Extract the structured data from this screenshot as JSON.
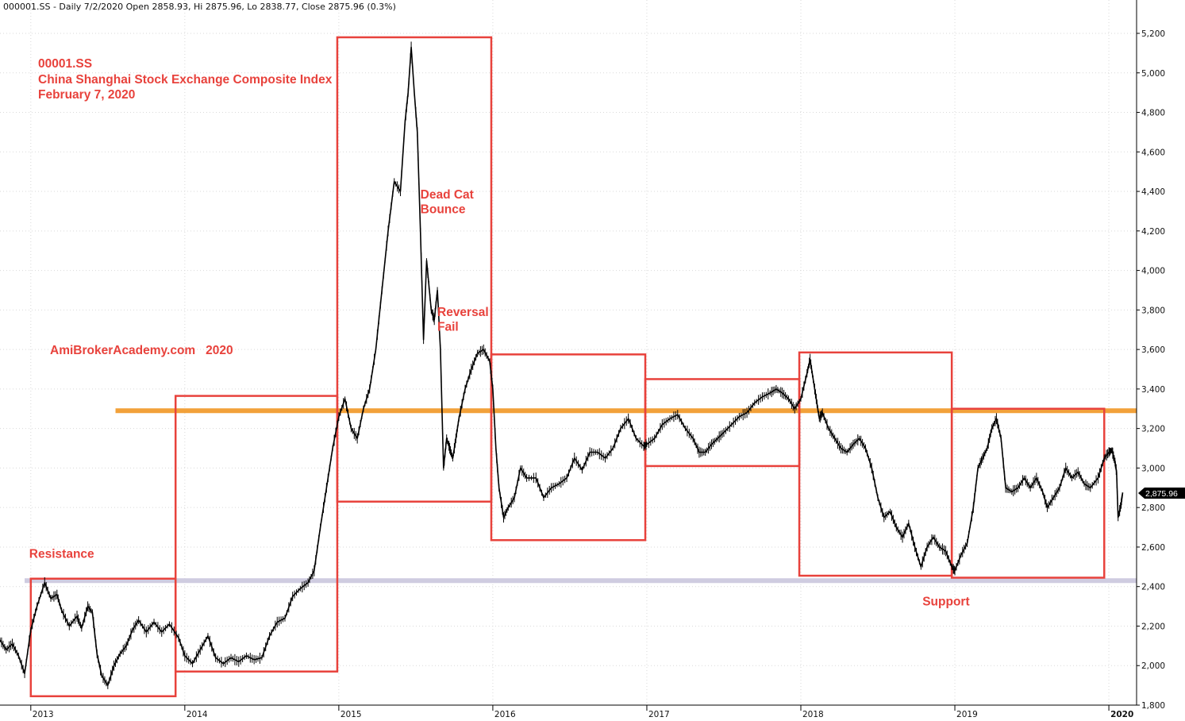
{
  "header": {
    "text": "000001.SS - Daily 7/2/2020 Open 2858.93, Hi 2875.96, Lo 2838.77, Close 2875.96 (0.3%)"
  },
  "chart_data": {
    "type": "line",
    "title": "00001.SS",
    "subtitle": "China Shanghai Stock Exchange Composite Index",
    "date_label": "February 7, 2020",
    "watermark": "AmiBrokerAcademy.com   2020",
    "price_tag": "2,875.96",
    "ylim": [
      1800,
      5300
    ],
    "y_ticks": [
      1800,
      2000,
      2200,
      2400,
      2600,
      2800,
      3000,
      3200,
      3400,
      3600,
      3800,
      4000,
      4200,
      4400,
      4600,
      4800,
      5000,
      5200
    ],
    "y_tick_labels": [
      "1,800",
      "2,000",
      "2,200",
      "2,400",
      "2,600",
      "2,800",
      "3,000",
      "3,200",
      "3,400",
      "3,600",
      "3,800",
      "4,000",
      "4,200",
      "4,400",
      "4,600",
      "4,800",
      "5,000",
      "5,200"
    ],
    "xlim": [
      2012.8,
      2020.18
    ],
    "x_ticks": [
      {
        "value": 2013.0,
        "label": "2013"
      },
      {
        "value": 2014.0,
        "label": "2014"
      },
      {
        "value": 2015.0,
        "label": "2015"
      },
      {
        "value": 2016.0,
        "label": "2016"
      },
      {
        "value": 2017.0,
        "label": "2017"
      },
      {
        "value": 2018.0,
        "label": "2018"
      },
      {
        "value": 2019.0,
        "label": "2019"
      },
      {
        "value": 2020.0,
        "label": "2020"
      }
    ],
    "series": [
      {
        "points": [
          [
            2012.8,
            2130
          ],
          [
            2012.84,
            2080
          ],
          [
            2012.88,
            2110
          ],
          [
            2012.92,
            2050
          ],
          [
            2012.96,
            1960
          ],
          [
            2013.0,
            2180
          ],
          [
            2013.04,
            2300
          ],
          [
            2013.09,
            2420
          ],
          [
            2013.13,
            2340
          ],
          [
            2013.17,
            2360
          ],
          [
            2013.2,
            2280
          ],
          [
            2013.25,
            2200
          ],
          [
            2013.3,
            2250
          ],
          [
            2013.33,
            2190
          ],
          [
            2013.37,
            2300
          ],
          [
            2013.4,
            2270
          ],
          [
            2013.43,
            2060
          ],
          [
            2013.46,
            1950
          ],
          [
            2013.5,
            1900
          ],
          [
            2013.54,
            2000
          ],
          [
            2013.58,
            2060
          ],
          [
            2013.62,
            2100
          ],
          [
            2013.66,
            2180
          ],
          [
            2013.7,
            2230
          ],
          [
            2013.75,
            2170
          ],
          [
            2013.8,
            2220
          ],
          [
            2013.85,
            2170
          ],
          [
            2013.9,
            2210
          ],
          [
            2013.96,
            2140
          ],
          [
            2014.0,
            2050
          ],
          [
            2014.05,
            2010
          ],
          [
            2014.1,
            2080
          ],
          [
            2014.15,
            2150
          ],
          [
            2014.2,
            2040
          ],
          [
            2014.25,
            2010
          ],
          [
            2014.3,
            2040
          ],
          [
            2014.35,
            2020
          ],
          [
            2014.4,
            2050
          ],
          [
            2014.45,
            2030
          ],
          [
            2014.5,
            2040
          ],
          [
            2014.55,
            2150
          ],
          [
            2014.6,
            2220
          ],
          [
            2014.65,
            2240
          ],
          [
            2014.7,
            2350
          ],
          [
            2014.75,
            2390
          ],
          [
            2014.8,
            2420
          ],
          [
            2014.84,
            2480
          ],
          [
            2014.88,
            2700
          ],
          [
            2014.92,
            2900
          ],
          [
            2014.96,
            3100
          ],
          [
            2015.0,
            3260
          ],
          [
            2015.04,
            3350
          ],
          [
            2015.08,
            3200
          ],
          [
            2015.12,
            3150
          ],
          [
            2015.16,
            3300
          ],
          [
            2015.2,
            3400
          ],
          [
            2015.24,
            3600
          ],
          [
            2015.28,
            3900
          ],
          [
            2015.32,
            4200
          ],
          [
            2015.36,
            4450
          ],
          [
            2015.4,
            4400
          ],
          [
            2015.43,
            4750
          ],
          [
            2015.45,
            4900
          ],
          [
            2015.47,
            5130
          ],
          [
            2015.49,
            4900
          ],
          [
            2015.51,
            4700
          ],
          [
            2015.53,
            4200
          ],
          [
            2015.55,
            3650
          ],
          [
            2015.57,
            4050
          ],
          [
            2015.6,
            3800
          ],
          [
            2015.62,
            3750
          ],
          [
            2015.64,
            3900
          ],
          [
            2015.66,
            3600
          ],
          [
            2015.68,
            3000
          ],
          [
            2015.7,
            3150
          ],
          [
            2015.72,
            3100
          ],
          [
            2015.74,
            3050
          ],
          [
            2015.76,
            3150
          ],
          [
            2015.78,
            3250
          ],
          [
            2015.82,
            3400
          ],
          [
            2015.86,
            3500
          ],
          [
            2015.9,
            3580
          ],
          [
            2015.94,
            3600
          ],
          [
            2015.98,
            3540
          ],
          [
            2016.0,
            3400
          ],
          [
            2016.02,
            3100
          ],
          [
            2016.04,
            2900
          ],
          [
            2016.07,
            2750
          ],
          [
            2016.1,
            2800
          ],
          [
            2016.14,
            2850
          ],
          [
            2016.18,
            3000
          ],
          [
            2016.22,
            2950
          ],
          [
            2016.28,
            2950
          ],
          [
            2016.33,
            2850
          ],
          [
            2016.38,
            2900
          ],
          [
            2016.43,
            2920
          ],
          [
            2016.48,
            2950
          ],
          [
            2016.53,
            3050
          ],
          [
            2016.58,
            2990
          ],
          [
            2016.63,
            3080
          ],
          [
            2016.68,
            3080
          ],
          [
            2016.73,
            3050
          ],
          [
            2016.78,
            3100
          ],
          [
            2016.83,
            3200
          ],
          [
            2016.88,
            3250
          ],
          [
            2016.93,
            3150
          ],
          [
            2016.98,
            3110
          ],
          [
            2017.0,
            3120
          ],
          [
            2017.05,
            3150
          ],
          [
            2017.1,
            3220
          ],
          [
            2017.15,
            3250
          ],
          [
            2017.2,
            3270
          ],
          [
            2017.25,
            3200
          ],
          [
            2017.3,
            3150
          ],
          [
            2017.34,
            3080
          ],
          [
            2017.38,
            3080
          ],
          [
            2017.42,
            3120
          ],
          [
            2017.46,
            3150
          ],
          [
            2017.5,
            3180
          ],
          [
            2017.55,
            3220
          ],
          [
            2017.6,
            3260
          ],
          [
            2017.65,
            3280
          ],
          [
            2017.7,
            3330
          ],
          [
            2017.75,
            3360
          ],
          [
            2017.8,
            3380
          ],
          [
            2017.84,
            3400
          ],
          [
            2017.88,
            3380
          ],
          [
            2017.92,
            3350
          ],
          [
            2017.96,
            3300
          ],
          [
            2018.0,
            3350
          ],
          [
            2018.04,
            3480
          ],
          [
            2018.06,
            3550
          ],
          [
            2018.08,
            3450
          ],
          [
            2018.1,
            3350
          ],
          [
            2018.12,
            3250
          ],
          [
            2018.14,
            3280
          ],
          [
            2018.18,
            3200
          ],
          [
            2018.22,
            3150
          ],
          [
            2018.26,
            3100
          ],
          [
            2018.3,
            3080
          ],
          [
            2018.34,
            3120
          ],
          [
            2018.38,
            3150
          ],
          [
            2018.42,
            3100
          ],
          [
            2018.46,
            3000
          ],
          [
            2018.5,
            2850
          ],
          [
            2018.54,
            2750
          ],
          [
            2018.58,
            2780
          ],
          [
            2018.62,
            2700
          ],
          [
            2018.66,
            2650
          ],
          [
            2018.7,
            2720
          ],
          [
            2018.74,
            2600
          ],
          [
            2018.78,
            2500
          ],
          [
            2018.82,
            2600
          ],
          [
            2018.86,
            2650
          ],
          [
            2018.9,
            2600
          ],
          [
            2018.94,
            2580
          ],
          [
            2018.98,
            2500
          ],
          [
            2019.0,
            2480
          ],
          [
            2019.04,
            2560
          ],
          [
            2019.08,
            2620
          ],
          [
            2019.12,
            2800
          ],
          [
            2019.15,
            3000
          ],
          [
            2019.18,
            3050
          ],
          [
            2019.21,
            3100
          ],
          [
            2019.24,
            3200
          ],
          [
            2019.27,
            3250
          ],
          [
            2019.3,
            3150
          ],
          [
            2019.33,
            2900
          ],
          [
            2019.37,
            2880
          ],
          [
            2019.41,
            2900
          ],
          [
            2019.45,
            2950
          ],
          [
            2019.49,
            2900
          ],
          [
            2019.53,
            2950
          ],
          [
            2019.57,
            2880
          ],
          [
            2019.6,
            2800
          ],
          [
            2019.64,
            2850
          ],
          [
            2019.68,
            2900
          ],
          [
            2019.72,
            3000
          ],
          [
            2019.76,
            2950
          ],
          [
            2019.8,
            2980
          ],
          [
            2019.84,
            2920
          ],
          [
            2019.88,
            2900
          ],
          [
            2019.93,
            2950
          ],
          [
            2019.97,
            3050
          ],
          [
            2020.0,
            3080
          ],
          [
            2020.02,
            3090
          ],
          [
            2020.04,
            3030
          ],
          [
            2020.05,
            2980
          ],
          [
            2020.06,
            2750
          ],
          [
            2020.08,
            2820
          ],
          [
            2020.09,
            2876
          ]
        ]
      }
    ],
    "horizontal_lines": [
      {
        "y": 3290,
        "x_from": 2013.55,
        "x_to": 2020.18,
        "color": "#f2a13a"
      },
      {
        "y": 2430,
        "x_from": 2012.96,
        "x_to": 2020.18,
        "color": "#cfcce0"
      },
      {
        "y": 3300,
        "x_from": 2019.0,
        "x_to": 2019.97,
        "color": "#d8213a"
      }
    ],
    "boxes": [
      {
        "x0": 2013.0,
        "x1": 2013.94,
        "y0": 1845,
        "y1": 2440
      },
      {
        "x0": 2013.94,
        "x1": 2014.99,
        "y0": 1970,
        "y1": 3365
      },
      {
        "x0": 2014.99,
        "x1": 2015.99,
        "y0": 2830,
        "y1": 5180
      },
      {
        "x0": 2015.99,
        "x1": 2016.99,
        "y0": 2635,
        "y1": 3575
      },
      {
        "x0": 2016.99,
        "x1": 2017.99,
        "y0": 3010,
        "y1": 3450
      },
      {
        "x0": 2017.99,
        "x1": 2018.98,
        "y0": 2455,
        "y1": 3585
      },
      {
        "x0": 2018.98,
        "x1": 2019.97,
        "y0": 2445,
        "y1": 3300
      }
    ],
    "annotations": [
      {
        "text": "Resistance",
        "x": 2013.0,
        "y": 2545
      },
      {
        "text": "Dead Cat",
        "x": 2015.54,
        "y": 4365
      },
      {
        "text": "Bounce",
        "x": 2015.54,
        "y": 4290
      },
      {
        "text": "Reversal",
        "x": 2015.65,
        "y": 3770
      },
      {
        "text": "Fail",
        "x": 2015.65,
        "y": 3695
      },
      {
        "text": "Support",
        "x": 2018.8,
        "y": 2305
      }
    ]
  },
  "colors": {
    "annotation": "#e8423c",
    "box": "#e8423c",
    "price_line": "#000000",
    "grid": "#d9d9d9"
  }
}
